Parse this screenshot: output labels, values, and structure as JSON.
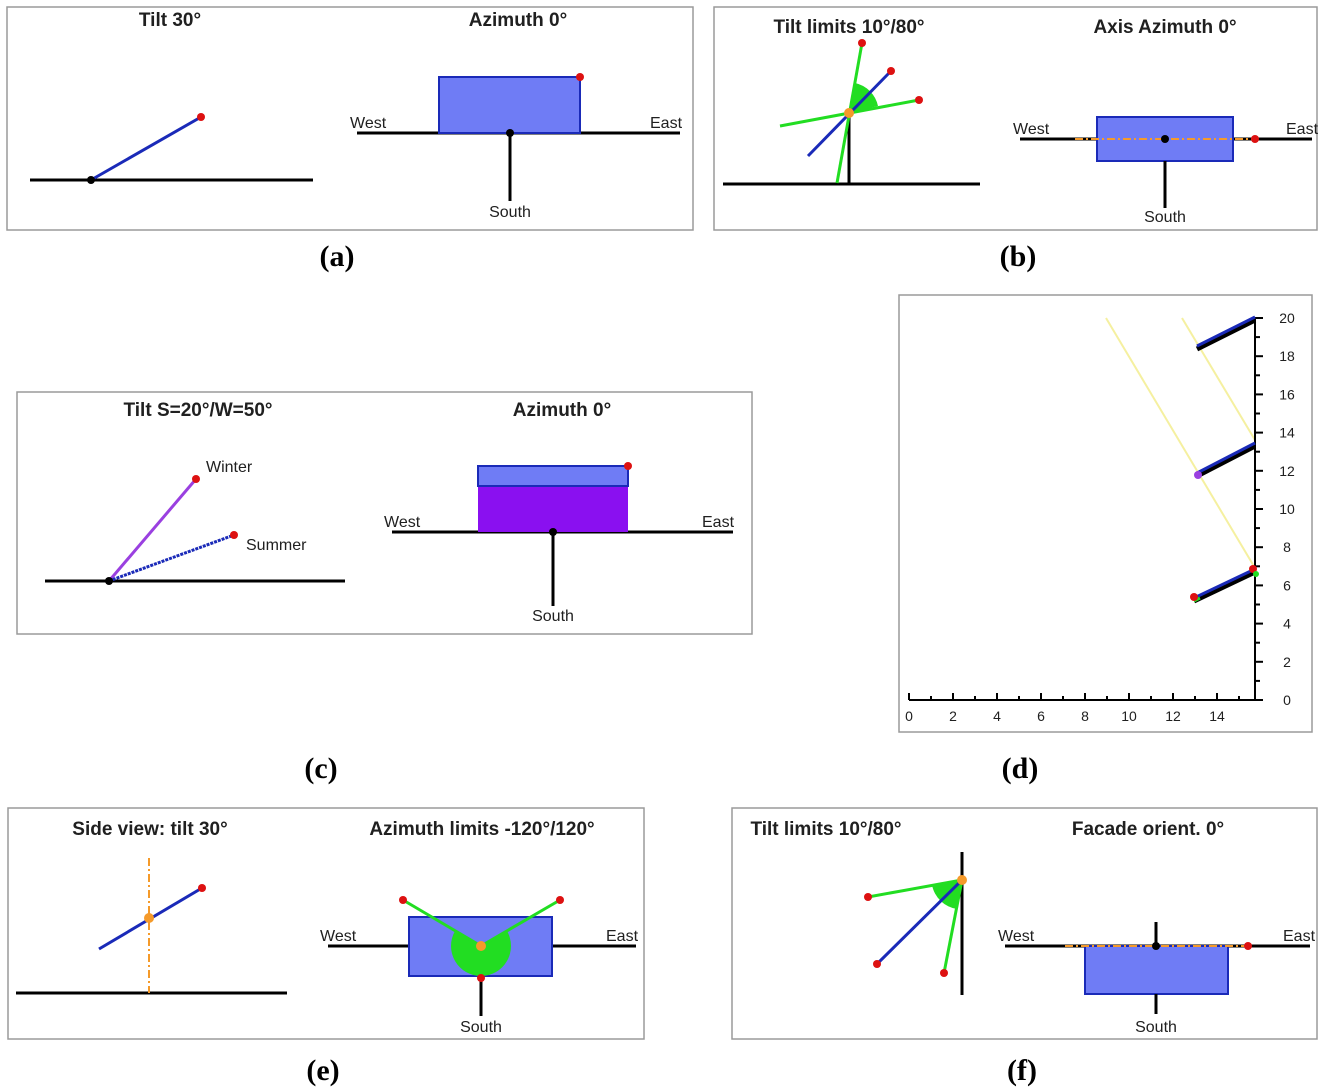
{
  "colors": {
    "panel_blue": "#6f7cf5",
    "panel_purple": "#8a10f0",
    "blue_line": "#1a2ab8",
    "purple_line": "#9a40e0",
    "green": "#22dd22",
    "orange": "#f59a2a",
    "red": "#dd1111",
    "yellow": "#f5f0a0"
  },
  "panels": {
    "a": {
      "side_title": "Tilt 30°",
      "top_title": "Azimuth 0°",
      "west": "West",
      "east": "East",
      "south": "South",
      "caption": "(a)"
    },
    "b": {
      "side_title": "Tilt limits 10°/80°",
      "top_title": "Axis Azimuth 0°",
      "west": "West",
      "east": "East",
      "south": "South",
      "caption": "(b)"
    },
    "c": {
      "side_title": "Tilt S=20°/W=50°",
      "top_title": "Azimuth 0°",
      "winter": "Winter",
      "summer": "Summer",
      "west": "West",
      "east": "East",
      "south": "South",
      "caption": "(c)"
    },
    "d": {
      "caption": "(d)",
      "x_ticks": [
        "0",
        "2",
        "4",
        "6",
        "8",
        "10",
        "12",
        "14"
      ],
      "y_ticks": [
        "0",
        "2",
        "4",
        "6",
        "8",
        "10",
        "12",
        "14",
        "16",
        "18",
        "20"
      ]
    },
    "e": {
      "side_title": "Side view: tilt 30°",
      "top_title": "Azimuth limits -120°/120°",
      "west": "West",
      "east": "East",
      "south": "South",
      "caption": "(e)"
    },
    "f": {
      "side_title": "Tilt limits 10°/80°",
      "top_title": "Facade orient. 0°",
      "west": "West",
      "east": "East",
      "south": "South",
      "caption": "(f)"
    }
  }
}
